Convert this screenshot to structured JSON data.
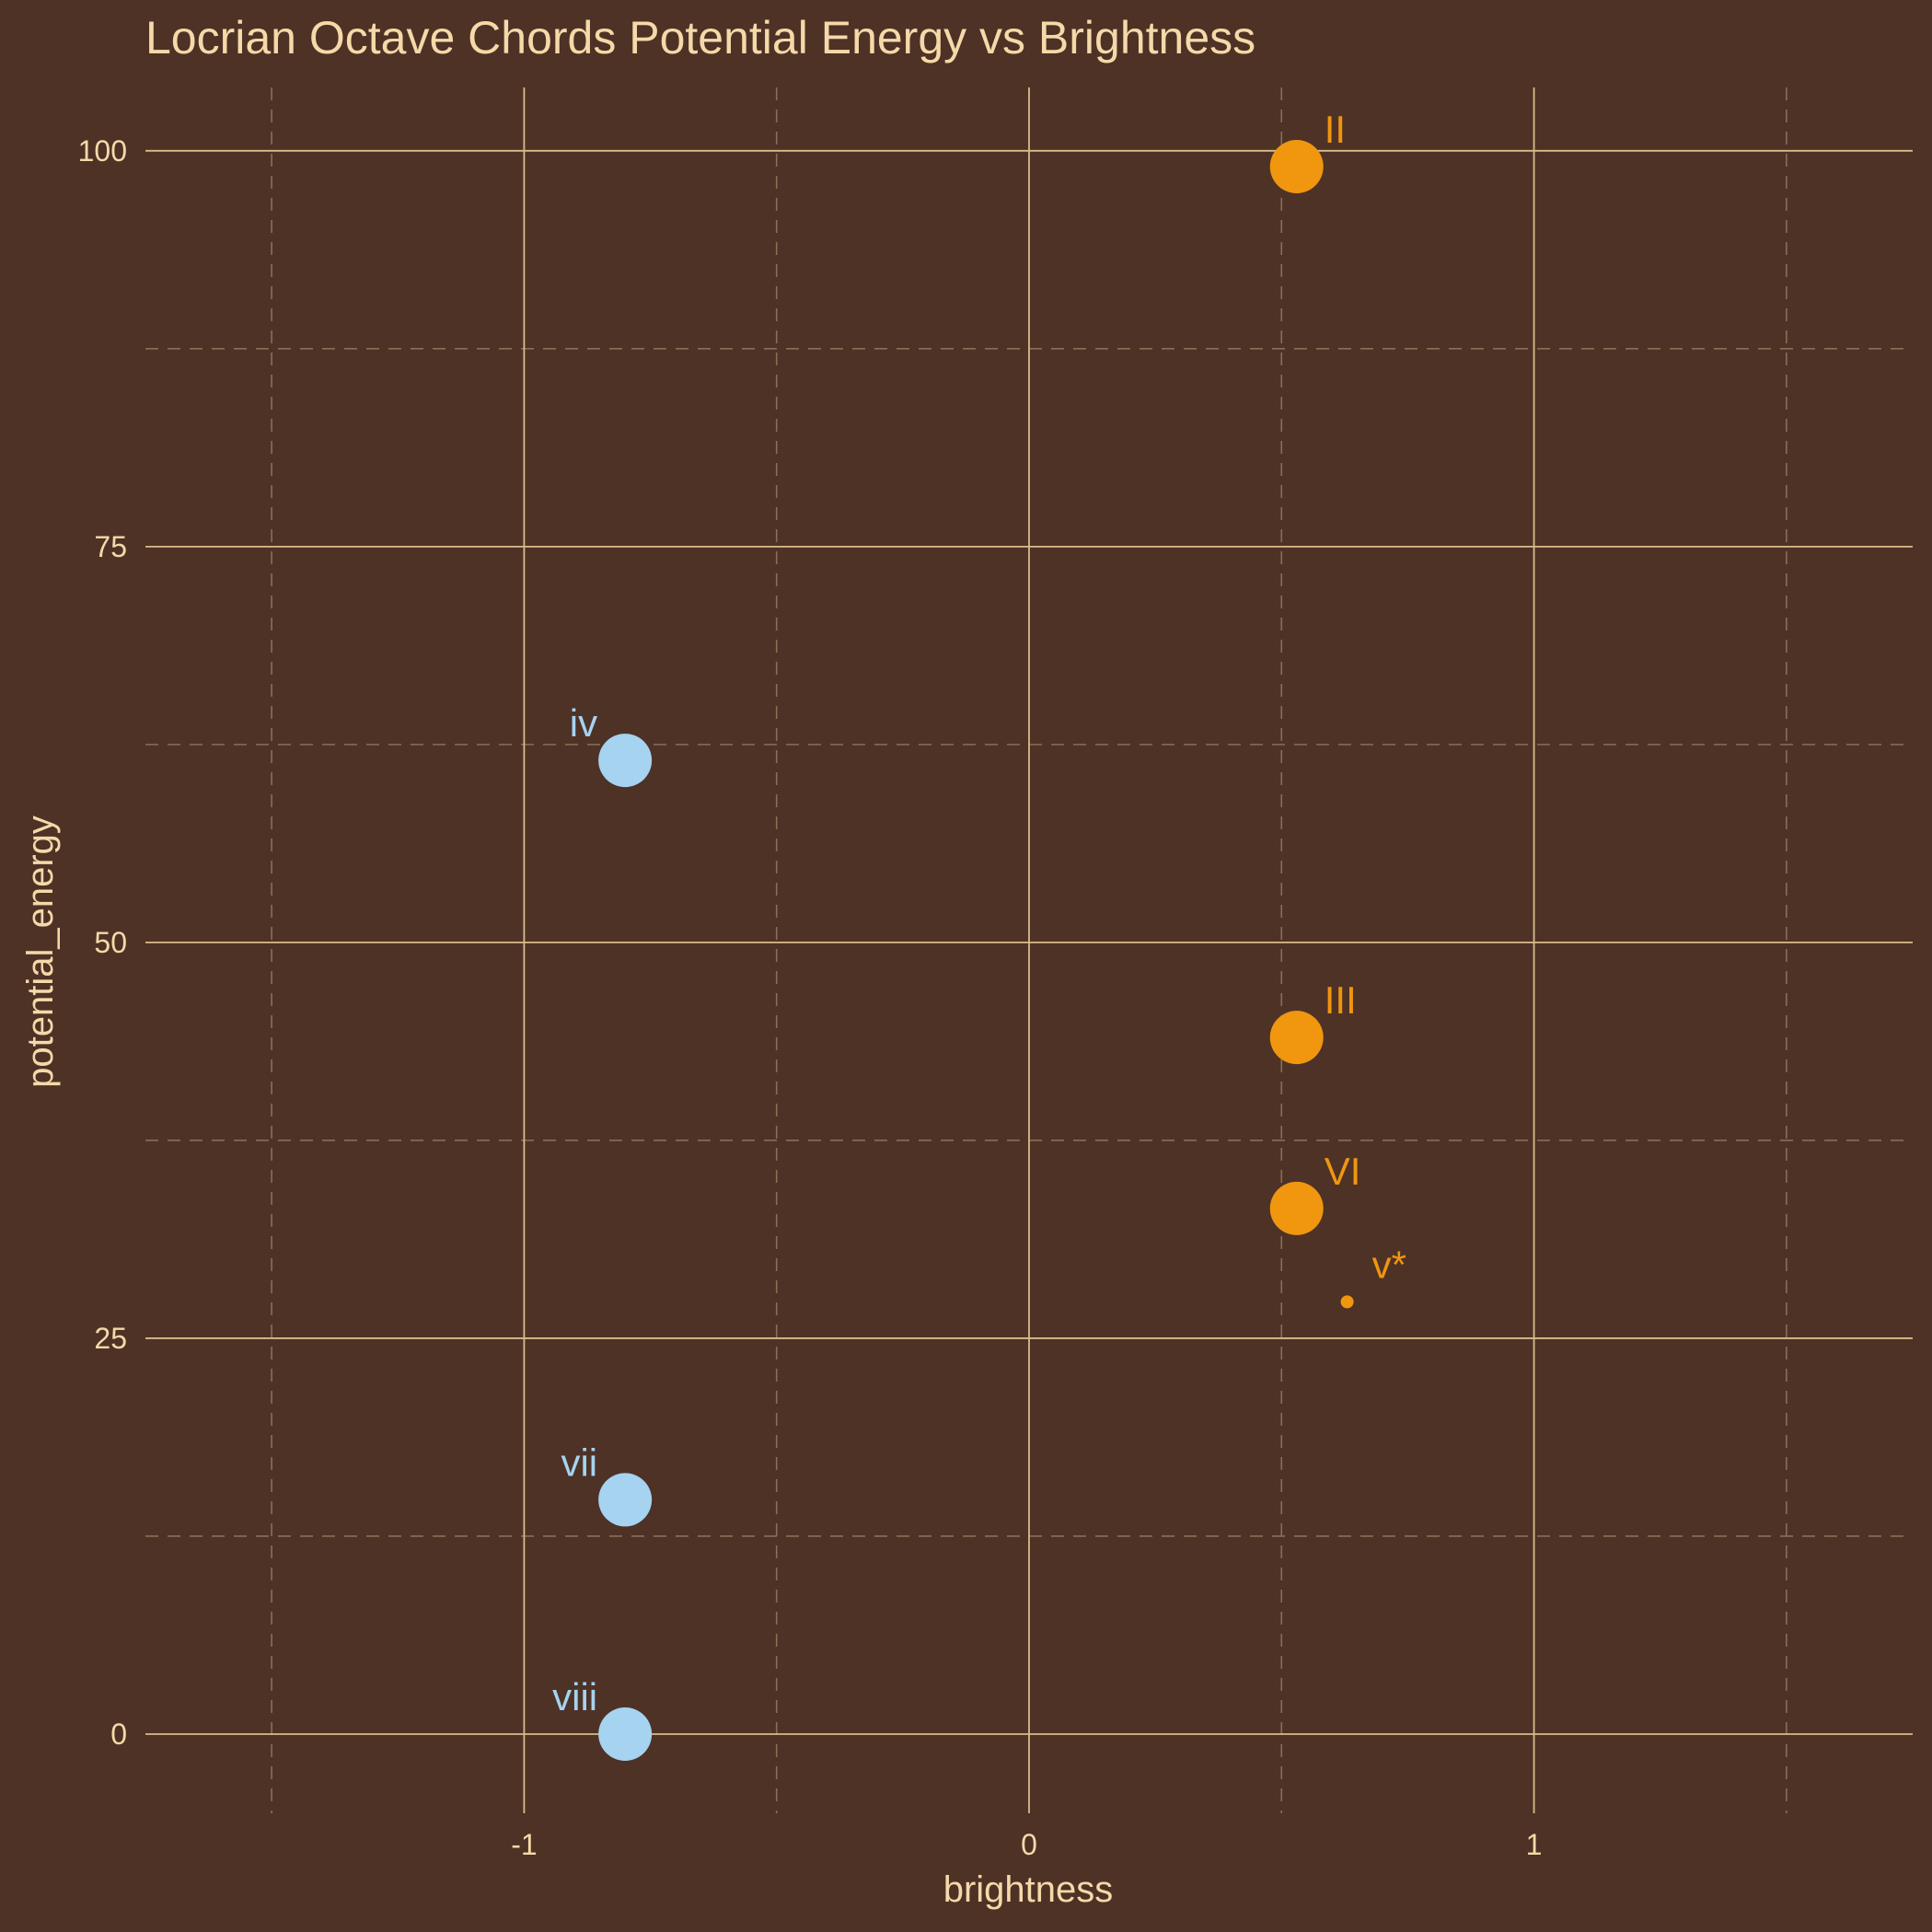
{
  "chart_data": {
    "type": "scatter",
    "title": "Locrian Octave Chords Potential Energy vs Brightness",
    "xlabel": "brightness",
    "ylabel": "potential_energy",
    "xlim": [
      -1.75,
      1.75
    ],
    "ylim": [
      -5,
      104
    ],
    "x_ticks": [
      -1,
      0,
      1
    ],
    "x_tick_labels": [
      "-1",
      "0",
      "1"
    ],
    "x_minor_ticks": [
      -1.5,
      -0.5,
      0.5,
      1.5
    ],
    "y_ticks": [
      0,
      25,
      50,
      75,
      100
    ],
    "y_tick_labels": [
      "0",
      "25",
      "50",
      "75",
      "100"
    ],
    "y_minor_ticks": [
      12.5,
      37.5,
      62.5,
      87.5
    ],
    "grid": true,
    "colors": {
      "background": "#4e3226",
      "text": "#f5d9a8",
      "grid_major": "#d9bc8a",
      "grid_minor": "#8a6e55"
    },
    "points": [
      {
        "label": "II",
        "x": 0.53,
        "y": 99,
        "size": "large",
        "color": "#f0960f"
      },
      {
        "label": "III",
        "x": 0.53,
        "y": 44,
        "size": "large",
        "color": "#f0960f"
      },
      {
        "label": "VI",
        "x": 0.53,
        "y": 33.2,
        "size": "large",
        "color": "#f0960f"
      },
      {
        "label": "v*",
        "x": 0.63,
        "y": 27.3,
        "size": "small",
        "color": "#f0960f"
      },
      {
        "label": "iv",
        "x": -0.8,
        "y": 61.5,
        "size": "large",
        "color": "#a5d3f0"
      },
      {
        "label": "vii",
        "x": -0.8,
        "y": 14.8,
        "size": "large",
        "color": "#a5d3f0"
      },
      {
        "label": "viii",
        "x": -0.8,
        "y": 0,
        "size": "large",
        "color": "#a5d3f0"
      }
    ]
  }
}
